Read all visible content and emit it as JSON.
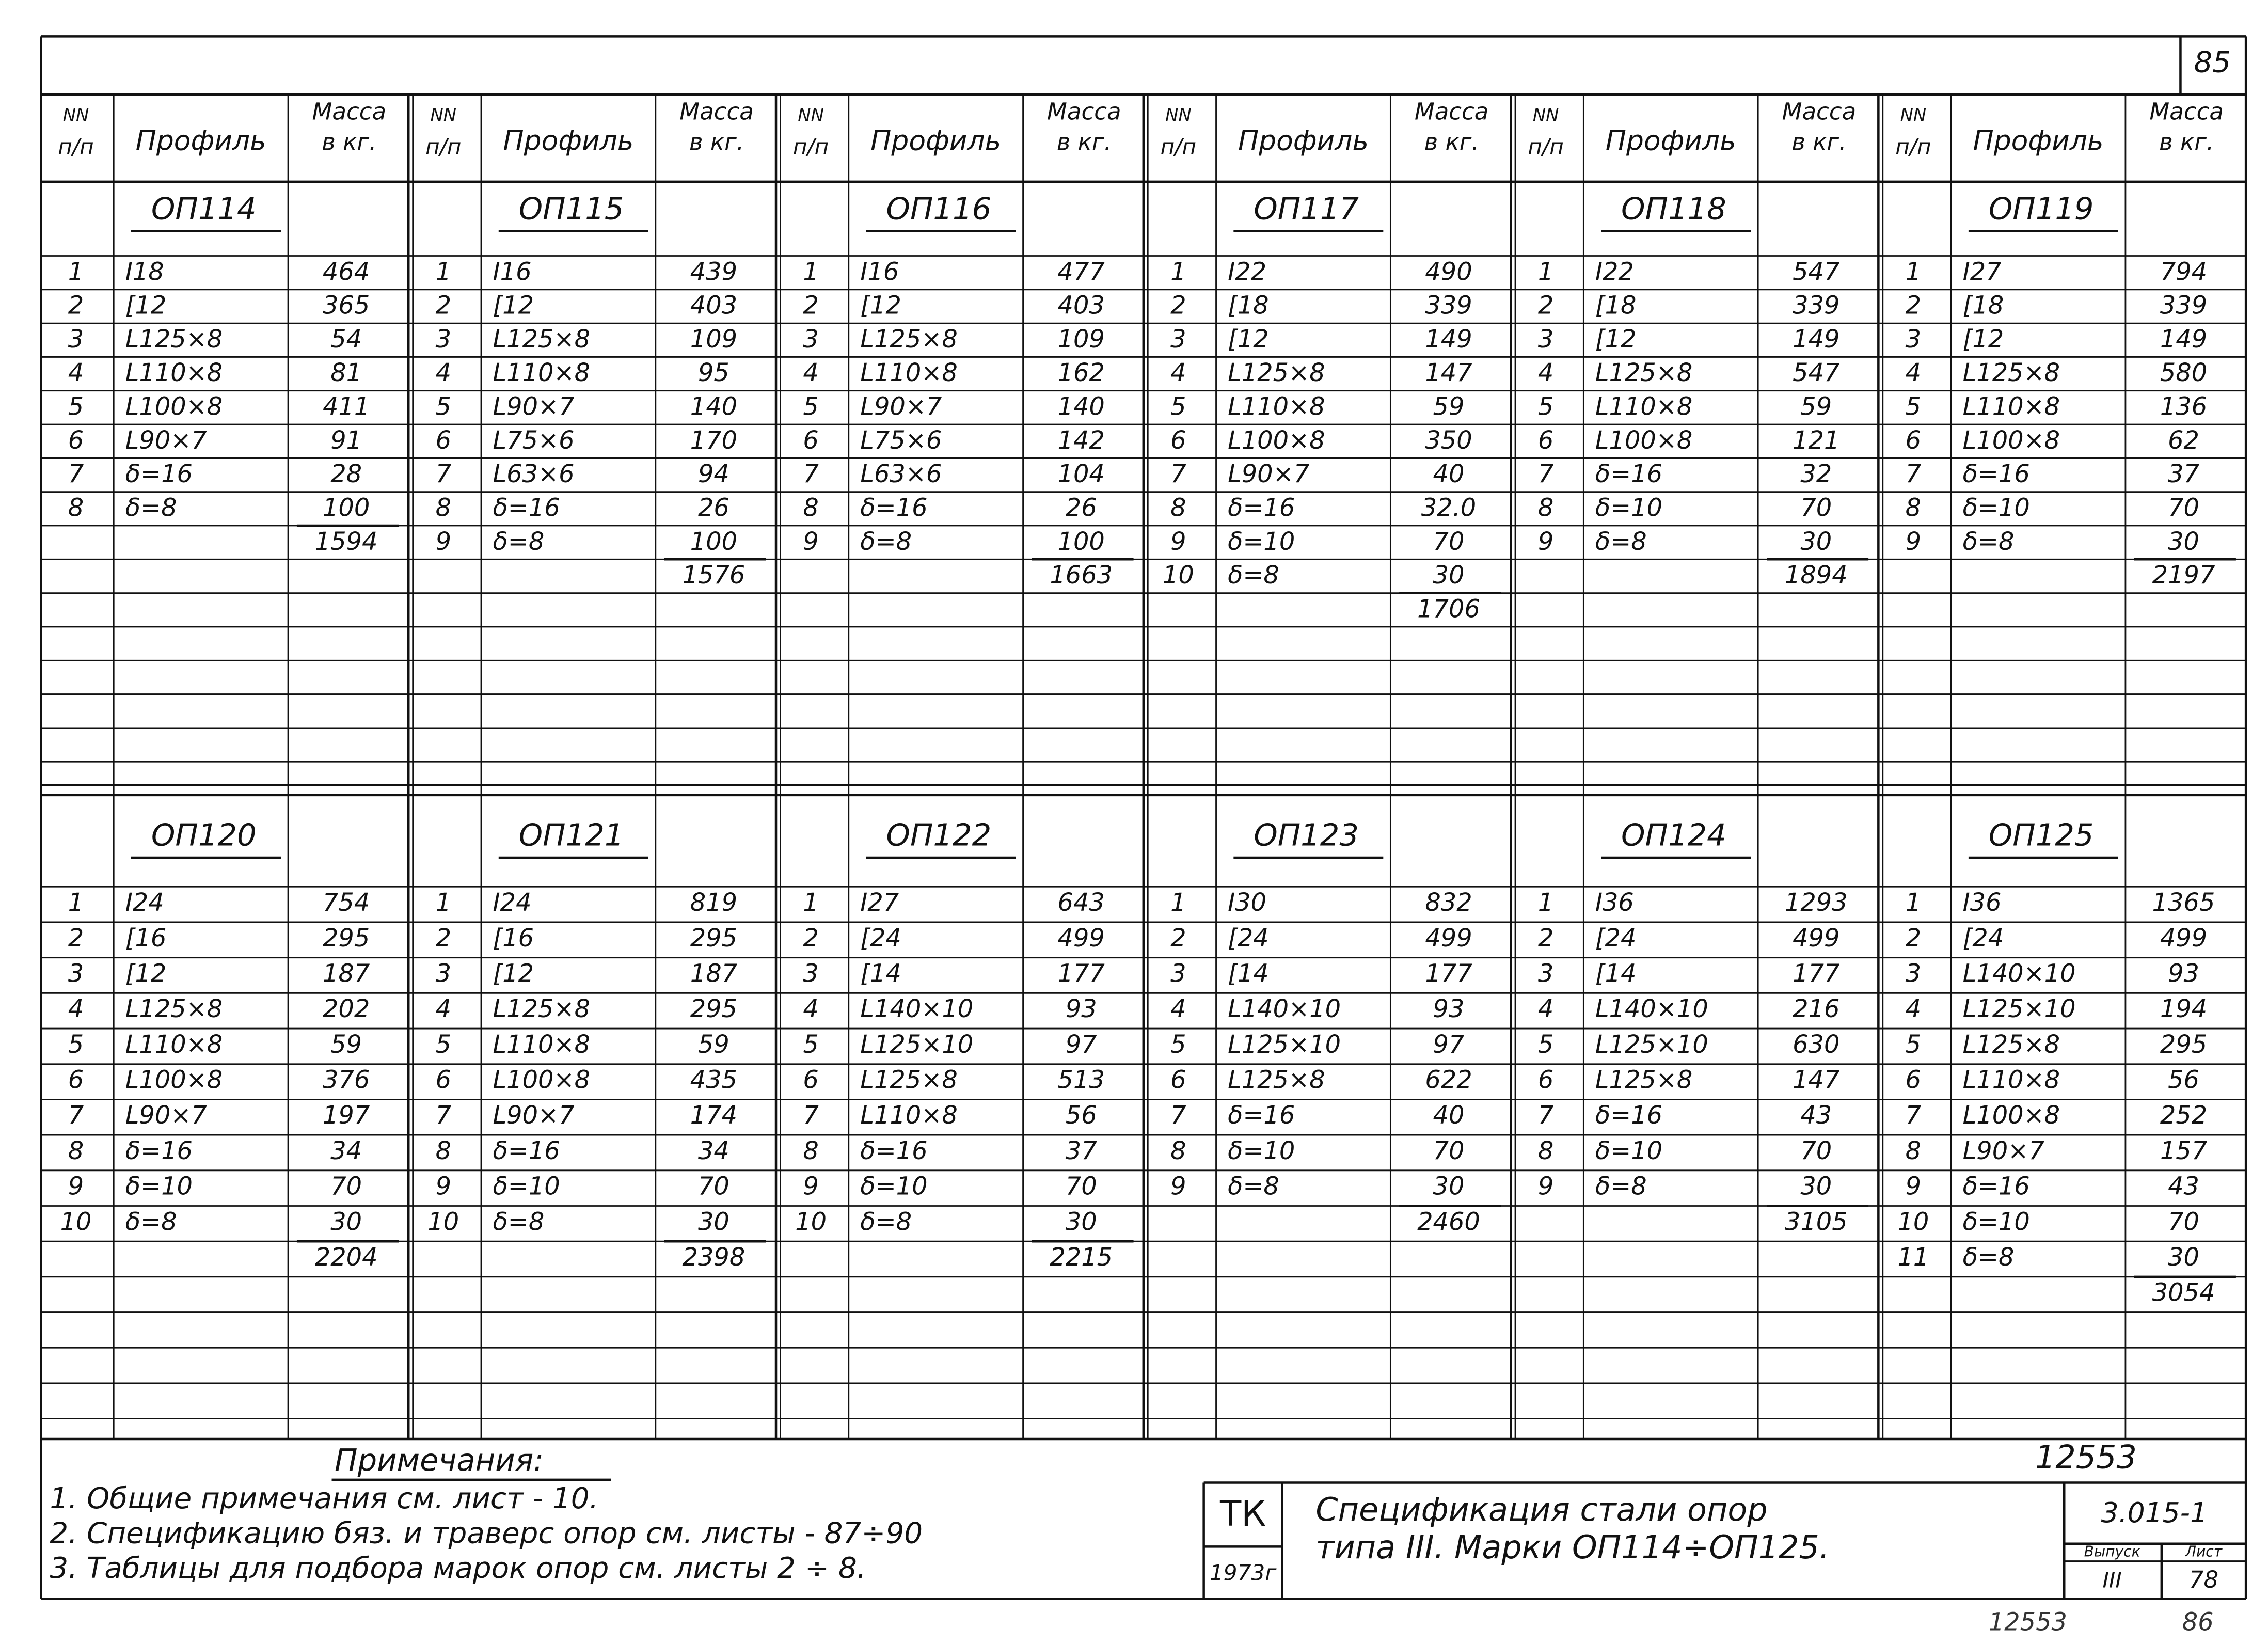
{
  "page_number": "85",
  "headers": {
    "num_top": "NN",
    "num_bottom": "п/п",
    "profile": "Профиль",
    "mass_top": "Масса",
    "mass_bottom": "в кг."
  },
  "blocks": [
    [
      {
        "title": "ОП114",
        "rows": [
          [
            1,
            "I18",
            464
          ],
          [
            2,
            "[12",
            365
          ],
          [
            3,
            "L125×8",
            54
          ],
          [
            4,
            "L110×8",
            81
          ],
          [
            5,
            "L100×8",
            411
          ],
          [
            6,
            "L90×7",
            91
          ],
          [
            7,
            "δ=16",
            28
          ],
          [
            8,
            "δ=8",
            100
          ]
        ],
        "total": 1594
      },
      {
        "title": "ОП115",
        "rows": [
          [
            1,
            "I16",
            439
          ],
          [
            2,
            "[12",
            403
          ],
          [
            3,
            "L125×8",
            109
          ],
          [
            4,
            "L110×8",
            95
          ],
          [
            5,
            "L90×7",
            140
          ],
          [
            6,
            "L75×6",
            170
          ],
          [
            7,
            "L63×6",
            94
          ],
          [
            8,
            "δ=16",
            26
          ],
          [
            9,
            "δ=8",
            100
          ]
        ],
        "total": 1576
      },
      {
        "title": "ОП116",
        "rows": [
          [
            1,
            "I16",
            477
          ],
          [
            2,
            "[12",
            403
          ],
          [
            3,
            "L125×8",
            109
          ],
          [
            4,
            "L110×8",
            162
          ],
          [
            5,
            "L90×7",
            140
          ],
          [
            6,
            "L75×6",
            142
          ],
          [
            7,
            "L63×6",
            104
          ],
          [
            8,
            "δ=16",
            26
          ],
          [
            9,
            "δ=8",
            100
          ]
        ],
        "total": 1663
      },
      {
        "title": "ОП117",
        "rows": [
          [
            1,
            "I22",
            490
          ],
          [
            2,
            "[18",
            339
          ],
          [
            3,
            "[12",
            149
          ],
          [
            4,
            "L125×8",
            147
          ],
          [
            5,
            "L110×8",
            59
          ],
          [
            6,
            "L100×8",
            350
          ],
          [
            7,
            "L90×7",
            40
          ],
          [
            8,
            "δ=16",
            "32.0"
          ],
          [
            9,
            "δ=10",
            70
          ],
          [
            10,
            "δ=8",
            30
          ]
        ],
        "total": 1706
      },
      {
        "title": "ОП118",
        "rows": [
          [
            1,
            "I22",
            547
          ],
          [
            2,
            "[18",
            339
          ],
          [
            3,
            "[12",
            149
          ],
          [
            4,
            "L125×8",
            547
          ],
          [
            5,
            "L110×8",
            59
          ],
          [
            6,
            "L100×8",
            121
          ],
          [
            7,
            "δ=16",
            32
          ],
          [
            8,
            "δ=10",
            70
          ],
          [
            9,
            "δ=8",
            30
          ]
        ],
        "total": 1894
      },
      {
        "title": "ОП119",
        "rows": [
          [
            1,
            "I27",
            794
          ],
          [
            2,
            "[18",
            339
          ],
          [
            3,
            "[12",
            149
          ],
          [
            4,
            "L125×8",
            580
          ],
          [
            5,
            "L110×8",
            136
          ],
          [
            6,
            "L100×8",
            62
          ],
          [
            7,
            "δ=16",
            37
          ],
          [
            8,
            "δ=10",
            70
          ],
          [
            9,
            "δ=8",
            30
          ]
        ],
        "total": 2197
      }
    ],
    [
      {
        "title": "ОП120",
        "rows": [
          [
            1,
            "I24",
            754
          ],
          [
            2,
            "[16",
            295
          ],
          [
            3,
            "[12",
            187
          ],
          [
            4,
            "L125×8",
            202
          ],
          [
            5,
            "L110×8",
            59
          ],
          [
            6,
            "L100×8",
            376
          ],
          [
            7,
            "L90×7",
            197
          ],
          [
            8,
            "δ=16",
            34
          ],
          [
            9,
            "δ=10",
            70
          ],
          [
            10,
            "δ=8",
            30
          ]
        ],
        "total": 2204
      },
      {
        "title": "ОП121",
        "rows": [
          [
            1,
            "I24",
            819
          ],
          [
            2,
            "[16",
            295
          ],
          [
            3,
            "[12",
            187
          ],
          [
            4,
            "L125×8",
            295
          ],
          [
            5,
            "L110×8",
            59
          ],
          [
            6,
            "L100×8",
            435
          ],
          [
            7,
            "L90×7",
            174
          ],
          [
            8,
            "δ=16",
            34
          ],
          [
            9,
            "δ=10",
            70
          ],
          [
            10,
            "δ=8",
            30
          ]
        ],
        "total": 2398
      },
      {
        "title": "ОП122",
        "rows": [
          [
            1,
            "I27",
            643
          ],
          [
            2,
            "[24",
            499
          ],
          [
            3,
            "[14",
            177
          ],
          [
            4,
            "L140×10",
            93
          ],
          [
            5,
            "L125×10",
            97
          ],
          [
            6,
            "L125×8",
            513
          ],
          [
            7,
            "L110×8",
            56
          ],
          [
            8,
            "δ=16",
            37
          ],
          [
            9,
            "δ=10",
            70
          ],
          [
            10,
            "δ=8",
            30
          ]
        ],
        "total": 2215
      },
      {
        "title": "ОП123",
        "rows": [
          [
            1,
            "I30",
            832
          ],
          [
            2,
            "[24",
            499
          ],
          [
            3,
            "[14",
            177
          ],
          [
            4,
            "L140×10",
            93
          ],
          [
            5,
            "L125×10",
            97
          ],
          [
            6,
            "L125×8",
            622
          ],
          [
            7,
            "δ=16",
            40
          ],
          [
            8,
            "δ=10",
            70
          ],
          [
            9,
            "δ=8",
            30
          ]
        ],
        "total": 2460
      },
      {
        "title": "ОП124",
        "rows": [
          [
            1,
            "I36",
            1293
          ],
          [
            2,
            "[24",
            499
          ],
          [
            3,
            "[14",
            177
          ],
          [
            4,
            "L140×10",
            216
          ],
          [
            5,
            "L125×10",
            630
          ],
          [
            6,
            "L125×8",
            147
          ],
          [
            7,
            "δ=16",
            43
          ],
          [
            8,
            "δ=10",
            70
          ],
          [
            9,
            "δ=8",
            30
          ]
        ],
        "total": 3105
      },
      {
        "title": "ОП125",
        "rows": [
          [
            1,
            "I36",
            1365
          ],
          [
            2,
            "[24",
            499
          ],
          [
            3,
            "L140×10",
            93
          ],
          [
            4,
            "L125×10",
            194
          ],
          [
            5,
            "L125×8",
            295
          ],
          [
            6,
            "L110×8",
            56
          ],
          [
            7,
            "L100×8",
            252
          ],
          [
            8,
            "L90×7",
            157
          ],
          [
            9,
            "δ=16",
            43
          ],
          [
            10,
            "δ=10",
            70
          ],
          [
            11,
            "δ=8",
            30
          ]
        ],
        "total": 3054
      }
    ]
  ],
  "notes": {
    "title": "Примечания:",
    "items": [
      "1. Общие примечания см. лист - 10.",
      "2. Спецификацию бяз. и траверс опор см. листы - 87÷90",
      "3. Таблицы для подбора марок опор см. листы 2 ÷ 8."
    ]
  },
  "stamp": {
    "archive_number": "12553",
    "org": "ТК",
    "year": "1973г",
    "title_line1": "Спецификация стали опор",
    "title_line2": "типа III. Марки ОП114÷ОП125.",
    "code": "3.015-1",
    "issue_label": "Выпуск",
    "issue": "III",
    "sheet_label": "Лист",
    "sheet": "78"
  },
  "footer": {
    "archive_number": "12553",
    "page": "86"
  }
}
